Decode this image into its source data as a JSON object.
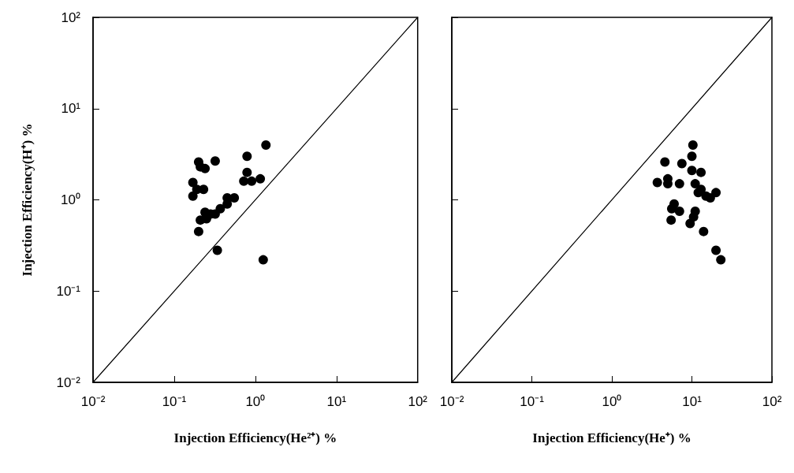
{
  "chart_data": [
    {
      "type": "scatter",
      "xlabel": "Injection Efficiency(He²⁺) %",
      "ylabel": "Injection Efficiency(H⁺) %",
      "log": "xy",
      "grid": false,
      "marker": "circle",
      "xlim": [
        0.01,
        100
      ],
      "ylim": [
        0.01,
        100
      ],
      "xticks": [
        {
          "value": 0.01,
          "label": "10⁻²"
        },
        {
          "value": 0.1,
          "label": "10⁻¹"
        },
        {
          "value": 1,
          "label": "10⁰"
        },
        {
          "value": 10,
          "label": "10¹"
        },
        {
          "value": 100,
          "label": "10²"
        }
      ],
      "yticks": [
        {
          "value": 0.01,
          "label": "10⁻²"
        },
        {
          "value": 0.1,
          "label": "10⁻¹"
        },
        {
          "value": 1,
          "label": "10⁰"
        },
        {
          "value": 10,
          "label": "10¹"
        },
        {
          "value": 100,
          "label": "10²"
        }
      ],
      "series": [
        {
          "color": "#000000",
          "x": [
            1.35,
            0.79,
            0.32,
            0.2,
            0.21,
            0.24,
            0.17,
            0.19,
            0.17,
            0.23,
            0.79,
            0.72,
            0.9,
            1.15,
            0.45,
            0.55,
            0.45,
            0.37,
            0.32,
            0.24,
            0.28,
            0.21,
            0.25,
            0.2,
            0.34,
            1.25
          ],
          "values": [
            3.98,
            3.0,
            2.66,
            2.6,
            2.3,
            2.2,
            1.55,
            1.3,
            1.1,
            1.3,
            2.0,
            1.6,
            1.6,
            1.7,
            1.05,
            1.05,
            0.9,
            0.8,
            0.7,
            0.73,
            0.7,
            0.6,
            0.62,
            0.45,
            0.28,
            0.22
          ]
        },
        {
          "type": "line",
          "color": "#000000",
          "marker": "none",
          "x": [
            0.01,
            100
          ],
          "values": [
            0.01,
            100
          ]
        }
      ]
    },
    {
      "type": "scatter",
      "xlabel": "Injection Efficiency(He⁺) %",
      "log": "xy",
      "grid": false,
      "marker": "circle",
      "tick_labels": "x",
      "xlim": [
        0.01,
        100
      ],
      "ylim": [
        0.01,
        100
      ],
      "xticks": [
        {
          "value": 0.01,
          "label": "10⁻²"
        },
        {
          "value": 0.1,
          "label": "10⁻¹"
        },
        {
          "value": 1,
          "label": "10⁰"
        },
        {
          "value": 10,
          "label": "10¹"
        },
        {
          "value": 100,
          "label": "10²"
        }
      ],
      "yticks": [
        0.01,
        0.1,
        1,
        10,
        100
      ],
      "series": [
        {
          "color": "#000000",
          "x": [
            10.3,
            10,
            4.6,
            7.5,
            3.7,
            5,
            5,
            7,
            10,
            13,
            11,
            13,
            15,
            12,
            20,
            17,
            6,
            5.6,
            7,
            5.5,
            11,
            10.5,
            9.5,
            14,
            20,
            23
          ],
          "values": [
            3.98,
            3.0,
            2.6,
            2.5,
            1.55,
            1.7,
            1.5,
            1.5,
            2.1,
            2.0,
            1.5,
            1.3,
            1.1,
            1.2,
            1.2,
            1.05,
            0.9,
            0.8,
            0.75,
            0.6,
            0.75,
            0.65,
            0.55,
            0.45,
            0.28,
            0.22
          ]
        },
        {
          "type": "line",
          "color": "#000000",
          "marker": "none",
          "x": [
            0.01,
            100
          ],
          "values": [
            0.01,
            100
          ]
        }
      ]
    }
  ]
}
